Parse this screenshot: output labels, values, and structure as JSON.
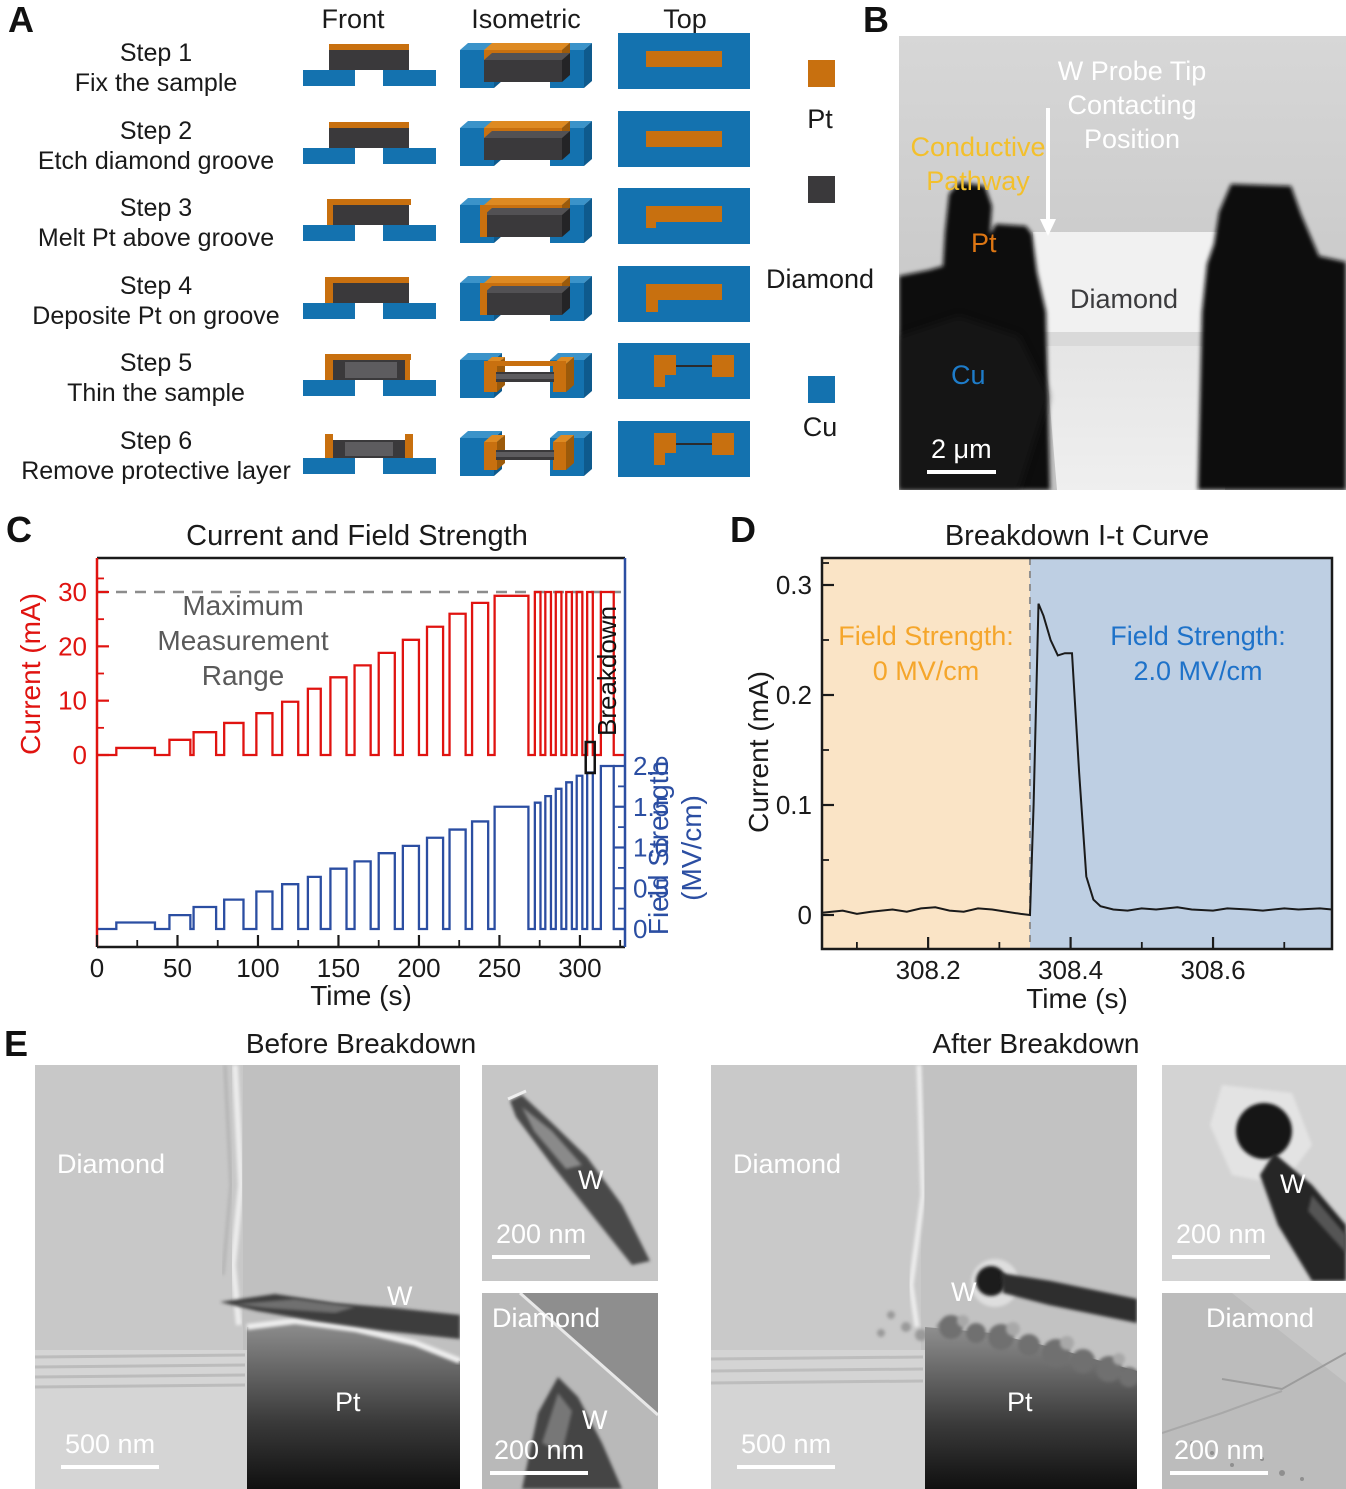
{
  "panels": {
    "a": "A",
    "b": "B",
    "c": "C",
    "d": "D",
    "e": "E"
  },
  "panelA": {
    "columns": [
      "Front",
      "Isometric",
      "Top"
    ],
    "steps": [
      {
        "step": "Step 1",
        "desc": "Fix the sample"
      },
      {
        "step": "Step 2",
        "desc": "Etch diamond groove"
      },
      {
        "step": "Step 3",
        "desc": "Melt Pt above groove"
      },
      {
        "step": "Step 4",
        "desc": "Deposite Pt on groove"
      },
      {
        "step": "Step 5",
        "desc": "Thin the sample"
      },
      {
        "step": "Step 6",
        "desc": "Remove protective layer"
      }
    ],
    "legend": [
      {
        "label": "Pt",
        "color": "#C8700F"
      },
      {
        "label": "Diamond",
        "color": "#3A393B"
      },
      {
        "label": "Cu",
        "color": "#1472AF"
      }
    ]
  },
  "panelB": {
    "probe_label_lines": [
      "W Probe Tip",
      "Contacting",
      "Position"
    ],
    "conductive_label_lines": [
      "Conductive",
      "Pathway"
    ],
    "pt": "Pt",
    "diamond": "Diamond",
    "cu": "Cu",
    "scale": "2 μm",
    "colors": {
      "conductive": "#F3C02C",
      "pt": "#DD7613",
      "cu": "#1E7CC9",
      "diamond": "#3C3C3E"
    }
  },
  "chart_data": [
    {
      "panel": "C",
      "type": "line",
      "title": "Current and Field Strength",
      "xlabel": "Time (s)",
      "x_range": [
        0,
        328
      ],
      "xticks": [
        0,
        50,
        100,
        150,
        200,
        250,
        300
      ],
      "left_axis": {
        "label": "Current (mA)",
        "color": "#E01310",
        "ticks": [
          0,
          10,
          20,
          30
        ],
        "range": [
          0,
          33
        ]
      },
      "right_axis": {
        "label": "Field Strength",
        "label2": "(MV/cm)",
        "color": "#2B4EA2",
        "ticks": [
          0,
          0.5,
          1.0,
          1.5,
          2.0
        ],
        "tick_labels": [
          "0",
          "0.5",
          "1.0",
          "1.5",
          "2.0"
        ],
        "range": [
          0,
          2.1
        ]
      },
      "annotations": {
        "max_range_lines": [
          "Maximum",
          "Measurement",
          "Range"
        ],
        "breakdown": "Breakdown",
        "dashed_value_mA": 30
      },
      "series_note": "pulses as [t_start_s, t_end_s, current_mA, field_MV_per_cm]",
      "pulses": [
        [
          12,
          36,
          1.3,
          0.08
        ],
        [
          45,
          58,
          2.8,
          0.17
        ],
        [
          60,
          74,
          4.2,
          0.27
        ],
        [
          79,
          91,
          5.9,
          0.36
        ],
        [
          99,
          109,
          7.7,
          0.46
        ],
        [
          115,
          125,
          9.8,
          0.55
        ],
        [
          131,
          139,
          12.2,
          0.64
        ],
        [
          145,
          155,
          14.3,
          0.74
        ],
        [
          160,
          170,
          16.5,
          0.83
        ],
        [
          175,
          185,
          18.8,
          0.93
        ],
        [
          190,
          200,
          21.2,
          1.02
        ],
        [
          205,
          215,
          23.6,
          1.12
        ],
        [
          219,
          229,
          26.0,
          1.22
        ],
        [
          233,
          243,
          28.0,
          1.32
        ],
        [
          247,
          268,
          29.3,
          1.5
        ],
        [
          272,
          275.5,
          30,
          1.55
        ],
        [
          278.5,
          282,
          30,
          1.63
        ],
        [
          285,
          288.5,
          30,
          1.72
        ],
        [
          291.5,
          295,
          30,
          1.8
        ],
        [
          298,
          301.5,
          30,
          1.88
        ],
        [
          304.5,
          308,
          30,
          1.92
        ],
        [
          313,
          321,
          30,
          2.0
        ]
      ],
      "breakdown_marker_t": [
        303.6,
        309.2
      ]
    },
    {
      "panel": "D",
      "type": "line",
      "title": "Breakdown  I-t  Curve",
      "xlabel": "Time (s)",
      "ylabel": "Current (mA)",
      "x_range": [
        308.051,
        308.767
      ],
      "y_range": [
        -0.031,
        0.325
      ],
      "xticks": [
        308.2,
        308.4,
        308.6
      ],
      "xtick_labels": [
        "308.2",
        "308.4",
        "308.6"
      ],
      "yticks": [
        0,
        0.1,
        0.2,
        0.3
      ],
      "ytick_labels": [
        "0",
        "0.1",
        "0.2",
        "0.3"
      ],
      "boundary_x": 308.343,
      "regions": [
        {
          "label_lines": [
            "Field Strength:",
            "0 MV/cm"
          ],
          "x0": 308.051,
          "x1": 308.343,
          "fill": "#FAE4C6",
          "text_color": "#F5A62B"
        },
        {
          "label_lines": [
            "Field Strength:",
            "2.0 MV/cm"
          ],
          "x0": 308.343,
          "x1": 308.767,
          "fill": "#BECFE3",
          "text_color": "#1E72C9"
        }
      ],
      "line_color": "#1a1a1a",
      "points": [
        [
          308.051,
          0.002
        ],
        [
          308.08,
          0.004
        ],
        [
          308.1,
          0.001
        ],
        [
          308.12,
          0.003
        ],
        [
          308.15,
          0.005
        ],
        [
          308.17,
          0.003
        ],
        [
          308.19,
          0.006
        ],
        [
          308.21,
          0.007
        ],
        [
          308.23,
          0.004
        ],
        [
          308.25,
          0.003
        ],
        [
          308.27,
          0.006
        ],
        [
          308.29,
          0.005
        ],
        [
          308.31,
          0.003
        ],
        [
          308.33,
          0.001
        ],
        [
          308.343,
          0.0
        ],
        [
          308.348,
          0.1
        ],
        [
          308.355,
          0.283
        ],
        [
          308.362,
          0.272
        ],
        [
          308.372,
          0.25
        ],
        [
          308.382,
          0.236
        ],
        [
          308.392,
          0.238
        ],
        [
          308.402,
          0.238
        ],
        [
          308.412,
          0.13
        ],
        [
          308.422,
          0.035
        ],
        [
          308.432,
          0.014
        ],
        [
          308.442,
          0.008
        ],
        [
          308.46,
          0.005
        ],
        [
          308.48,
          0.004
        ],
        [
          308.5,
          0.006
        ],
        [
          308.52,
          0.005
        ],
        [
          308.55,
          0.007
        ],
        [
          308.57,
          0.005
        ],
        [
          308.6,
          0.004
        ],
        [
          308.62,
          0.006
        ],
        [
          308.65,
          0.005
        ],
        [
          308.67,
          0.004
        ],
        [
          308.7,
          0.006
        ],
        [
          308.72,
          0.005
        ],
        [
          308.75,
          0.006
        ],
        [
          308.767,
          0.005
        ]
      ]
    }
  ],
  "panelE": {
    "before": {
      "title": "Before Breakdown",
      "large": {
        "diamond": "Diamond",
        "w": "W",
        "pt": "Pt",
        "scale": "500 nm"
      },
      "small_top": {
        "w": "W",
        "scale": "200 nm"
      },
      "small_bottom": {
        "diamond": "Diamond",
        "w": "W",
        "scale": "200 nm"
      }
    },
    "after": {
      "title": "After Breakdown",
      "large": {
        "diamond": "Diamond",
        "w": "W",
        "pt": "Pt",
        "scale": "500 nm"
      },
      "small_top": {
        "w": "W",
        "scale": "200 nm"
      },
      "small_bottom": {
        "diamond": "Diamond",
        "scale": "200 nm"
      }
    }
  }
}
